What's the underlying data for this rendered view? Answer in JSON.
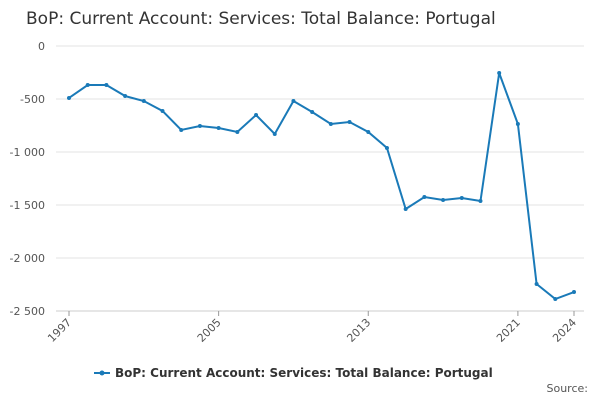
{
  "chart_data": {
    "type": "line",
    "title": "BoP: Current Account: Services: Total Balance: Portugal",
    "x": [
      1997,
      1998,
      1999,
      2000,
      2001,
      2002,
      2003,
      2004,
      2005,
      2006,
      2007,
      2008,
      2009,
      2010,
      2011,
      2012,
      2013,
      2014,
      2015,
      2016,
      2017,
      2018,
      2019,
      2020,
      2021,
      2022,
      2023,
      2024
    ],
    "series": [
      {
        "name": "BoP: Current Account: Services: Total Balance: Portugal",
        "color": "#1a7ab8",
        "values": [
          -490,
          -368,
          -368,
          -472,
          -519,
          -613,
          -792,
          -755,
          -774,
          -811,
          -651,
          -830,
          -519,
          -623,
          -736,
          -717,
          -811,
          -962,
          -1538,
          -1425,
          -1453,
          -1434,
          -1462,
          -255,
          -736,
          -2245,
          -2387,
          -2321
        ]
      }
    ],
    "xlim": [
      1997,
      2024
    ],
    "xticks": [
      1997,
      2005,
      2013,
      2021,
      2024
    ],
    "ylim": [
      -2500,
      0
    ],
    "yticks": [
      {
        "value": -2500,
        "label": "-2 500"
      },
      {
        "value": -2000,
        "label": "-2 000"
      },
      {
        "value": -1500,
        "label": "-1 500"
      },
      {
        "value": -1000,
        "label": "-1 000"
      },
      -500,
      0
    ],
    "grid": true,
    "source": "Source:"
  }
}
